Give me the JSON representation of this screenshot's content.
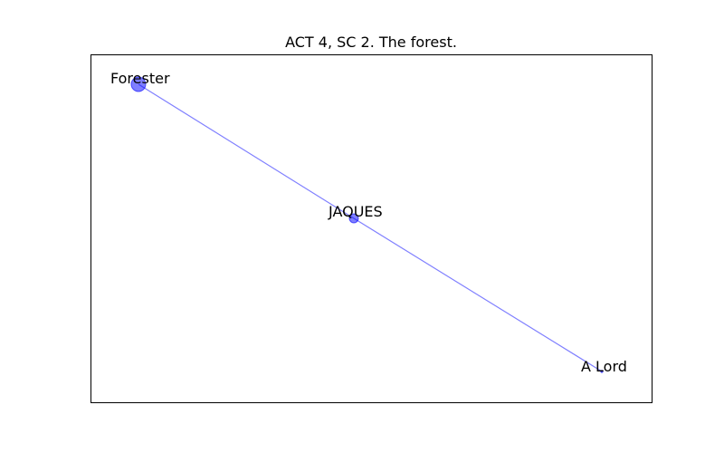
{
  "title": "ACT 4, SC 2. The forest.",
  "colors": {
    "node_fill": "#0000ff",
    "edge_stroke": "#0000ff",
    "frame": "#000000",
    "text": "#000000"
  },
  "nodes": [
    {
      "id": "forester",
      "label": "Forester",
      "weight": 3
    },
    {
      "id": "jaques",
      "label": "JAQUES",
      "weight": 2
    },
    {
      "id": "a-lord",
      "label": "A Lord",
      "weight": 1
    }
  ],
  "edges": [
    {
      "source": "forester",
      "target": "jaques"
    },
    {
      "source": "jaques",
      "target": "a-lord"
    }
  ]
}
